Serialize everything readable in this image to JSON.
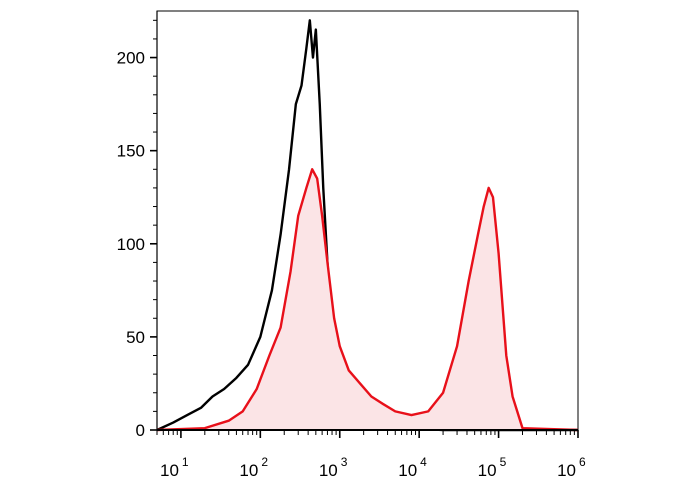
{
  "chart_data": {
    "type": "area",
    "title": "",
    "xlabel": "",
    "ylabel": "",
    "x_scale": "log",
    "xlim": [
      5,
      1000000
    ],
    "ylim": [
      0,
      225
    ],
    "grid": false,
    "y_ticks": [
      {
        "value": 0,
        "label": "0"
      },
      {
        "value": 50,
        "label": "50"
      },
      {
        "value": 100,
        "label": "100"
      },
      {
        "value": 150,
        "label": "150"
      },
      {
        "value": 200,
        "label": "200"
      }
    ],
    "x_ticks": [
      {
        "value": 10,
        "base": "10",
        "exp": "1"
      },
      {
        "value": 100,
        "base": "10",
        "exp": "2"
      },
      {
        "value": 1000,
        "base": "10",
        "exp": "3"
      },
      {
        "value": 10000,
        "base": "10",
        "exp": "4"
      },
      {
        "value": 100000,
        "base": "10",
        "exp": "5"
      },
      {
        "value": 1000000,
        "base": "10",
        "exp": "6"
      }
    ],
    "series": [
      {
        "color": "#000000",
        "fill": "none",
        "x": [
          5,
          8,
          12,
          18,
          25,
          35,
          50,
          70,
          100,
          140,
          180,
          230,
          280,
          330,
          380,
          420,
          460,
          500,
          560,
          620,
          700,
          800,
          950,
          1100,
          1400,
          2000,
          3000,
          5000,
          8000,
          20000,
          100000,
          1000000
        ],
        "y": [
          0,
          4,
          8,
          12,
          18,
          22,
          28,
          35,
          50,
          75,
          105,
          140,
          175,
          185,
          205,
          220,
          200,
          215,
          175,
          130,
          90,
          55,
          35,
          22,
          15,
          10,
          5,
          2,
          1,
          0,
          0,
          0
        ]
      },
      {
        "color": "#e8101a",
        "fill": "#fbe4e6",
        "x": [
          5,
          20,
          40,
          60,
          90,
          130,
          180,
          240,
          300,
          380,
          450,
          520,
          600,
          700,
          850,
          1000,
          1300,
          1800,
          2500,
          3500,
          5000,
          8000,
          13000,
          20000,
          30000,
          42000,
          55000,
          65000,
          75000,
          85000,
          100000,
          125000,
          150000,
          200000,
          1000000
        ],
        "y": [
          0,
          1,
          5,
          10,
          22,
          40,
          55,
          85,
          115,
          130,
          140,
          135,
          115,
          90,
          60,
          45,
          32,
          25,
          18,
          14,
          10,
          8,
          10,
          20,
          45,
          80,
          105,
          120,
          130,
          125,
          95,
          40,
          18,
          1,
          0
        ]
      }
    ]
  }
}
